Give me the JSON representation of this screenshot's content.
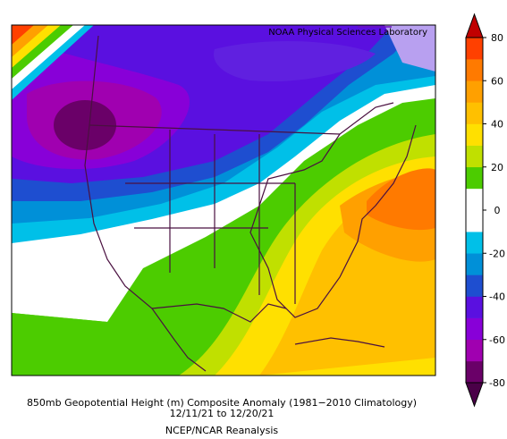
{
  "header": {
    "credit": "NOAA Physical Sciences Laboratory"
  },
  "caption": {
    "line1": "850mb Geopotential Height (m) Composite Anomaly (1981−2010 Climatology)",
    "line2": "12/11/21   to 12/20/21",
    "line3": "NCEP/NCAR Reanalysis"
  },
  "colorbar": {
    "lim": [
      -80,
      80
    ],
    "ticks": [
      80,
      60,
      40,
      20,
      0,
      -20,
      -40,
      -60,
      -80
    ],
    "colors": [
      "#6a0068",
      "#a000b0",
      "#8800d8",
      "#5a10e0",
      "#1e4ed0",
      "#0090d8",
      "#00c0e8",
      "#ffffff",
      "#ffffff",
      "#4ccc00",
      "#c0e000",
      "#ffe000",
      "#ffc000",
      "#ffa000",
      "#ff7a00",
      "#ff4000"
    ],
    "under_color": "#4a0048",
    "over_color": "#c00000"
  }
}
